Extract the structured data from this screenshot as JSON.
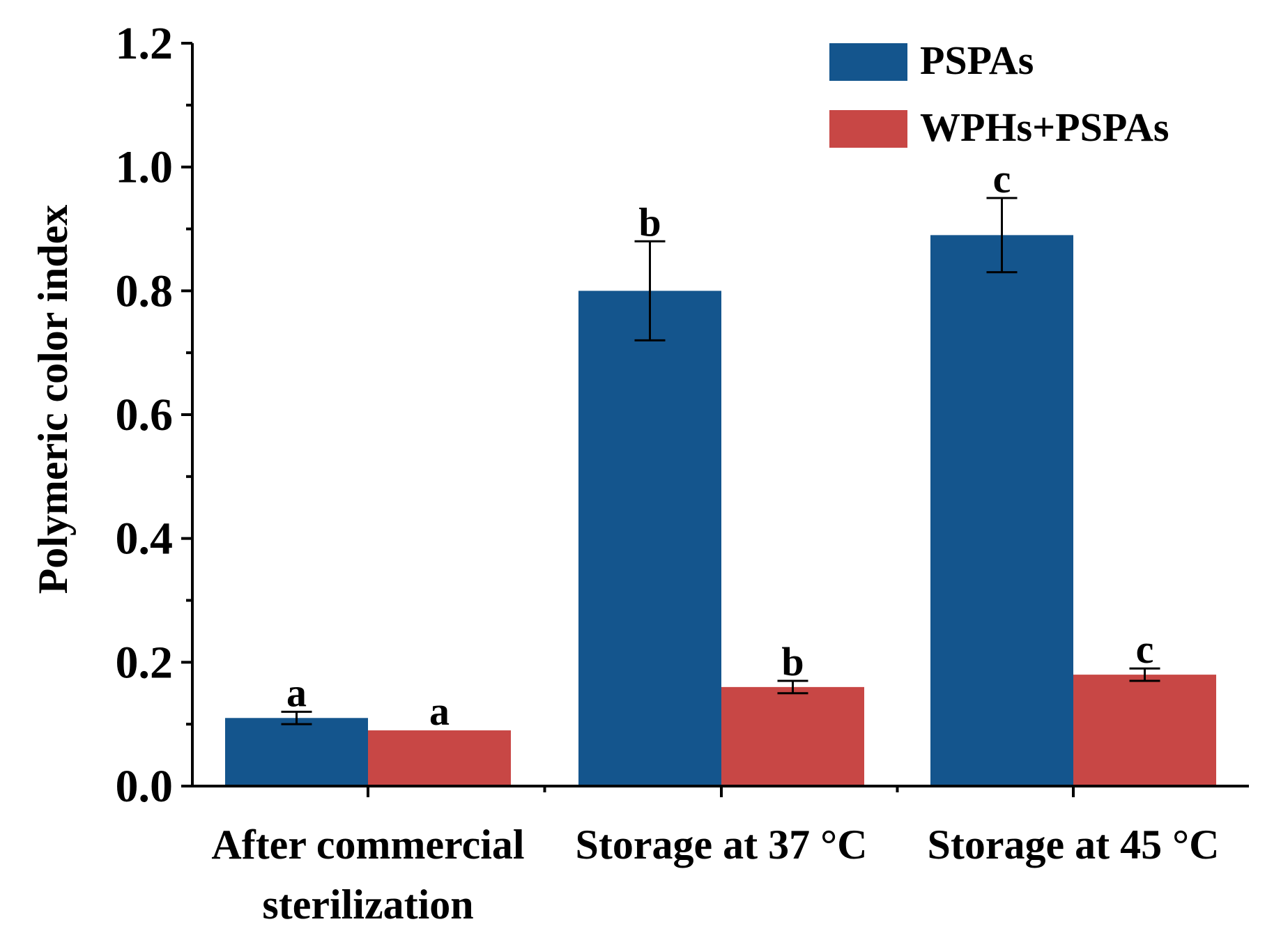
{
  "chart_data": {
    "type": "bar",
    "title": "",
    "xlabel": "",
    "ylabel": "Polymeric color index",
    "ylim": [
      0,
      1.2
    ],
    "yticks": [
      "0.0",
      "0.2",
      "0.4",
      "0.6",
      "0.8",
      "1.0",
      "1.2"
    ],
    "categories": [
      [
        "After commercial",
        "sterilization"
      ],
      [
        "Storage at 37 °C"
      ],
      [
        "Storage at 45 °C"
      ]
    ],
    "series": [
      {
        "name": "PSPAs",
        "color": "#14558d",
        "values": [
          0.11,
          0.8,
          0.89
        ],
        "errors": [
          0.01,
          0.08,
          0.06
        ],
        "labels": [
          "a",
          "b",
          "c"
        ]
      },
      {
        "name": "WPHs+PSPAs",
        "color": "#c84745",
        "values": [
          0.09,
          0.16,
          0.18
        ],
        "errors": [
          0.0,
          0.01,
          0.01
        ],
        "labels": [
          "a",
          "b",
          "c"
        ]
      }
    ],
    "legend_position": "top-right",
    "grid": false
  }
}
